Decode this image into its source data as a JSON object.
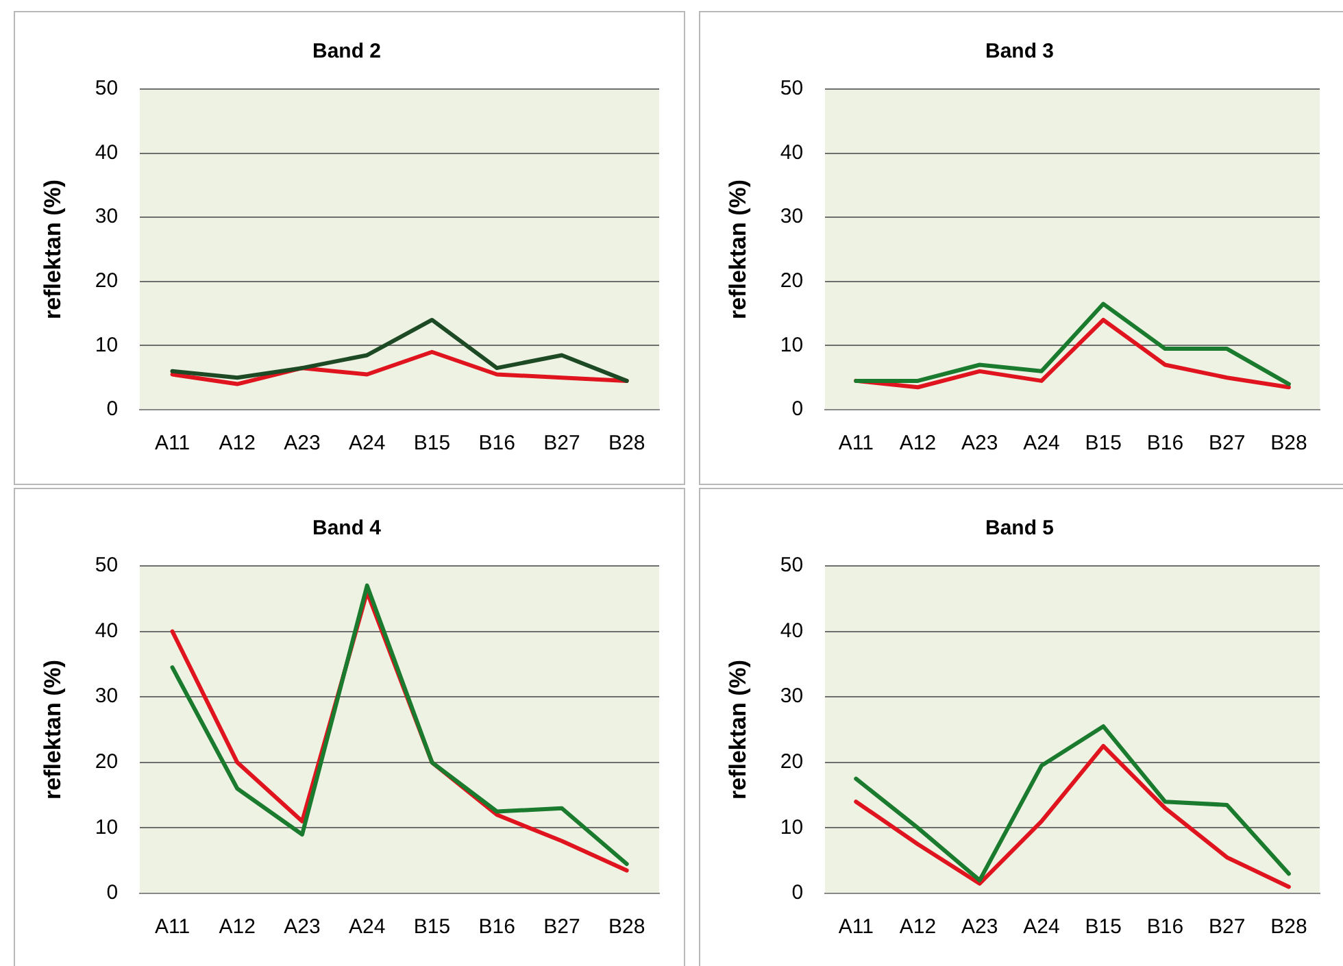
{
  "chart_data": [
    {
      "type": "line",
      "title": "Band 2",
      "ylabel": "reflektan (%)",
      "categories": [
        "A11",
        "A12",
        "A23",
        "A24",
        "B15",
        "B16",
        "B27",
        "B28"
      ],
      "ylim": [
        0,
        50
      ],
      "yticks": [
        0,
        10,
        20,
        30,
        40,
        50
      ],
      "grid": "y",
      "marker": "none",
      "series": [
        {
          "color": "#1d4a24",
          "values": [
            6,
            5,
            6.5,
            8.5,
            14,
            6.5,
            8.5,
            4.5
          ]
        },
        {
          "color": "#e0141e",
          "values": [
            5.5,
            4,
            6.5,
            5.5,
            9,
            5.5,
            5,
            4.5
          ]
        }
      ]
    },
    {
      "type": "line",
      "title": "Band 3",
      "ylabel": "reflektan (%)",
      "categories": [
        "A11",
        "A12",
        "A23",
        "A24",
        "B15",
        "B16",
        "B27",
        "B28"
      ],
      "ylim": [
        0,
        50
      ],
      "yticks": [
        0,
        10,
        20,
        30,
        40,
        50
      ],
      "grid": "y",
      "marker": "none",
      "series": [
        {
          "color": "#1a7a2e",
          "values": [
            4.5,
            4.5,
            7,
            6,
            16.5,
            9.5,
            9.5,
            4
          ]
        },
        {
          "color": "#e0141e",
          "values": [
            4.5,
            3.5,
            6,
            4.5,
            14,
            7,
            5,
            3.5
          ]
        }
      ]
    },
    {
      "type": "line",
      "title": "Band 4",
      "ylabel": "reflektan (%)",
      "categories": [
        "A11",
        "A12",
        "A23",
        "A24",
        "B15",
        "B16",
        "B27",
        "B28"
      ],
      "ylim": [
        0,
        50
      ],
      "yticks": [
        0,
        10,
        20,
        30,
        40,
        50
      ],
      "grid": "y",
      "marker": "none",
      "series": [
        {
          "color": "#1a7a2e",
          "values": [
            34.5,
            16,
            9,
            47,
            20,
            12.5,
            13,
            4.5
          ]
        },
        {
          "color": "#e0141e",
          "values": [
            40,
            20,
            11,
            46,
            20,
            12,
            8,
            3.5
          ]
        }
      ]
    },
    {
      "type": "line",
      "title": "Band 5",
      "ylabel": "reflektan (%)",
      "categories": [
        "A11",
        "A12",
        "A23",
        "A24",
        "B15",
        "B16",
        "B27",
        "B28"
      ],
      "ylim": [
        0,
        50
      ],
      "yticks": [
        0,
        10,
        20,
        30,
        40,
        50
      ],
      "grid": "y",
      "marker": "none",
      "series": [
        {
          "color": "#1a7a2e",
          "values": [
            17.5,
            10,
            2,
            19.5,
            25.5,
            14,
            13.5,
            3
          ]
        },
        {
          "color": "#e0141e",
          "values": [
            14,
            7.5,
            1.5,
            11,
            22.5,
            13,
            5.5,
            1
          ]
        }
      ]
    }
  ]
}
